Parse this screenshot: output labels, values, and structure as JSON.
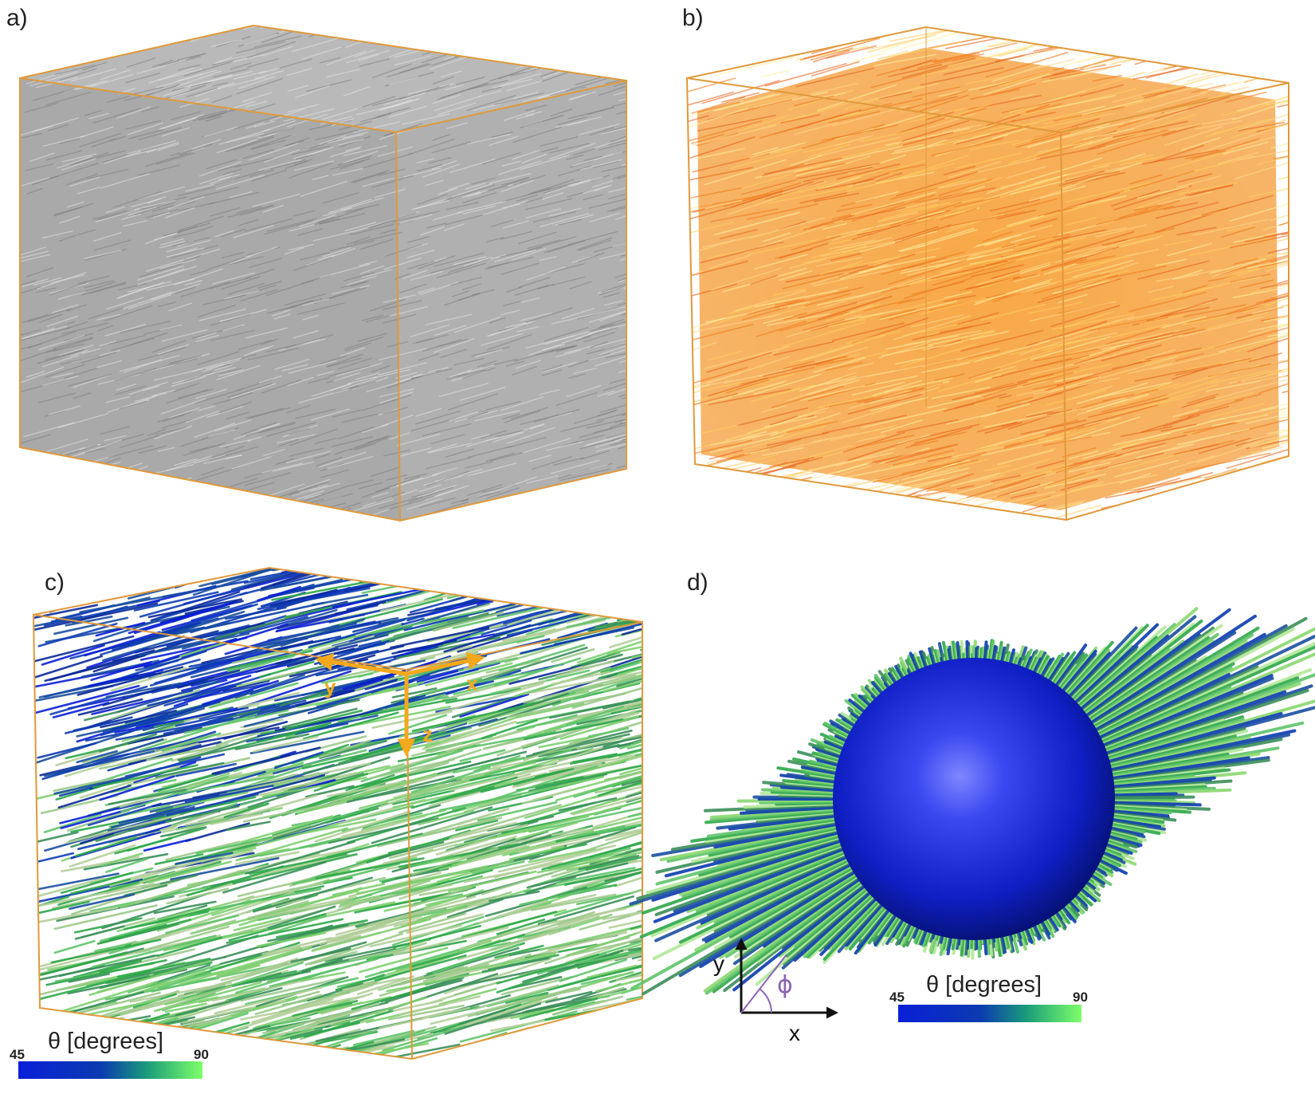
{
  "panels": {
    "a": {
      "label": "a)"
    },
    "b": {
      "label": "b)"
    },
    "c": {
      "label": "c)",
      "axes": {
        "x": "x",
        "y": "y",
        "z": "z"
      },
      "colorbar": {
        "title": "θ [degrees]",
        "min": "45",
        "max": "90"
      }
    },
    "d": {
      "label": "d)",
      "frame": {
        "x": "x",
        "y": "y",
        "angle": "ϕ"
      },
      "colorbar": {
        "title": "θ [degrees]",
        "min": "45",
        "max": "90"
      }
    }
  },
  "colors": {
    "box_edge": "#e0993a",
    "axis_arrow": "#f4a81c",
    "gray_fibers": "#9a9a9a",
    "orange_fibers": "#f5902a",
    "theta_low": "#0a1fd8",
    "theta_high": "#7dff6a",
    "phi_line": "#8a63b5"
  }
}
